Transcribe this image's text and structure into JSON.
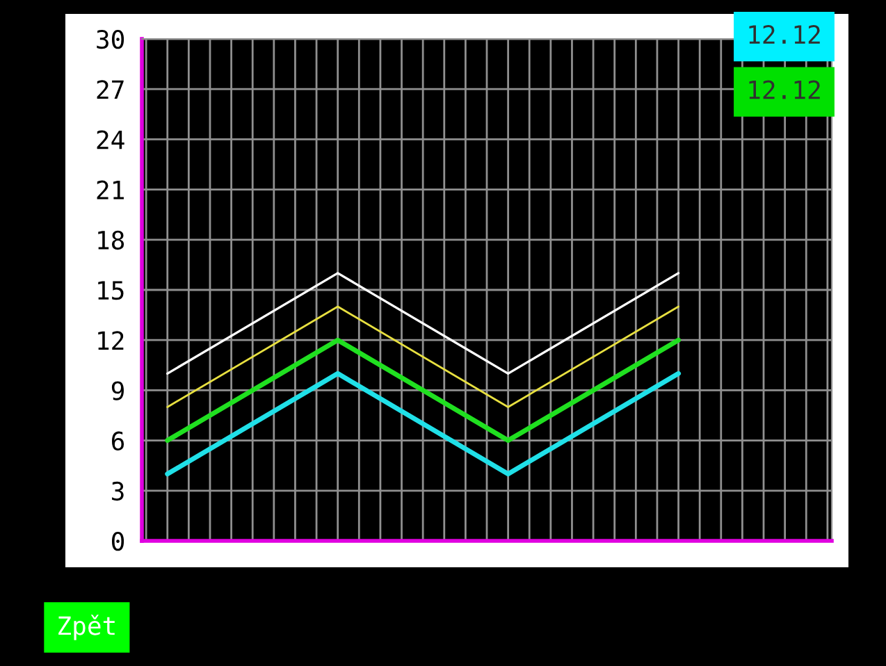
{
  "chart_data": {
    "type": "line",
    "categories": [
      null,
      null,
      null,
      null
    ],
    "series": [
      {
        "color": "#ffffff",
        "values": [
          10,
          16,
          10,
          16
        ]
      },
      {
        "color": "#e8e040",
        "values": [
          8,
          14,
          8,
          14
        ]
      },
      {
        "color": "#20e020",
        "values": [
          6,
          12,
          6,
          12
        ]
      },
      {
        "color": "#20e0e8",
        "values": [
          4,
          10,
          4,
          10
        ]
      }
    ],
    "ylim": [
      0,
      30
    ],
    "yticks": [
      0,
      3,
      6,
      9,
      12,
      15,
      18,
      21,
      24,
      27,
      30
    ],
    "grid": true,
    "marker": "none",
    "line_style": "solid",
    "tick_labels": "y",
    "annotations": [
      "12.12",
      "12.12",
      "Zpět"
    ]
  }
}
